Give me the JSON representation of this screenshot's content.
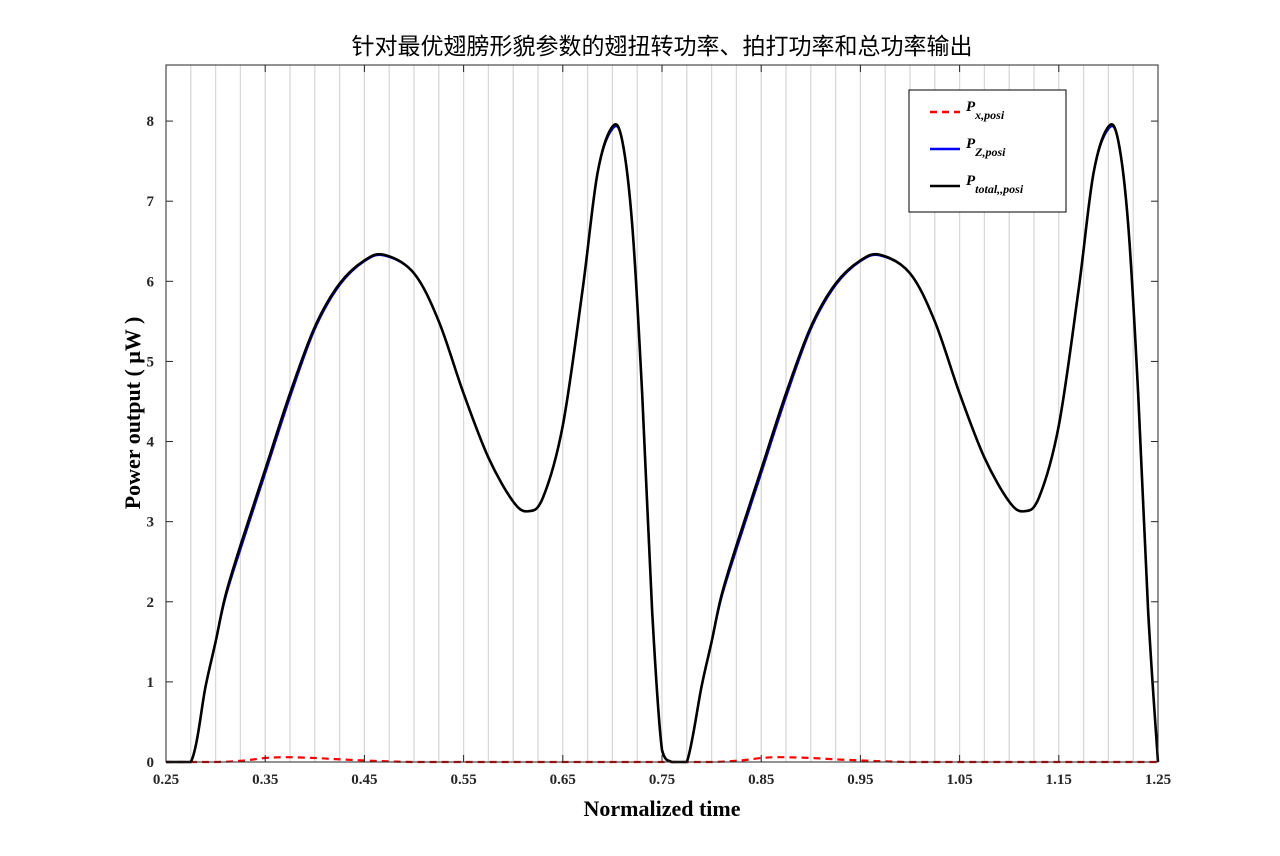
{
  "chart_data": {
    "type": "line",
    "title": "针对最优翅膀形貌参数的翅扭转功率、拍打功率和总功率输出",
    "xlabel": "Normalized time",
    "ylabel": "Power output ( μW )",
    "xlim": [
      0.25,
      1.25
    ],
    "ylim": [
      0,
      8.7
    ],
    "xticks": [
      "0.25",
      "0.35",
      "0.45",
      "0.55",
      "0.65",
      "0.75",
      "0.85",
      "0.95",
      "1.05",
      "1.15",
      "1.25"
    ],
    "yticks": [
      "0",
      "1",
      "2",
      "3",
      "4",
      "5",
      "6",
      "7",
      "8"
    ],
    "grid": "vertical",
    "legend": {
      "placement": "top-right",
      "entries": [
        {
          "label": "P",
          "sub": "x,posi",
          "color": "#ff0000",
          "style": "dashed"
        },
        {
          "label": "P",
          "sub": "Z,posi",
          "color": "#0000ff",
          "style": "solid"
        },
        {
          "label": "P",
          "sub": "total,,posi",
          "color": "#000000",
          "style": "solid"
        }
      ]
    },
    "series": [
      {
        "name": "Px,posi",
        "color": "#ff0000",
        "x": [
          0.25,
          0.3,
          0.33,
          0.35,
          0.37,
          0.4,
          0.43,
          0.47,
          0.5,
          0.55,
          0.6,
          0.65,
          0.7,
          0.75,
          0.8,
          0.83,
          0.85,
          0.87,
          0.9,
          0.93,
          0.97,
          1.0,
          1.05,
          1.1,
          1.15,
          1.2,
          1.25
        ],
        "y": [
          0,
          0,
          0.02,
          0.05,
          0.06,
          0.05,
          0.03,
          0.01,
          0,
          0,
          0,
          0,
          0,
          0,
          0,
          0.02,
          0.05,
          0.06,
          0.05,
          0.03,
          0.01,
          0,
          0,
          0,
          0,
          0,
          0
        ]
      },
      {
        "name": "PZ,posi",
        "color": "#0000ff",
        "x": [
          0.25,
          0.275,
          0.29,
          0.3,
          0.31,
          0.325,
          0.35,
          0.375,
          0.4,
          0.425,
          0.45,
          0.47,
          0.5,
          0.525,
          0.55,
          0.575,
          0.6,
          0.615,
          0.63,
          0.65,
          0.67,
          0.685,
          0.7,
          0.71,
          0.72,
          0.73,
          0.74,
          0.75,
          0.76,
          0.775,
          0.79,
          0.8,
          0.81,
          0.825,
          0.85,
          0.875,
          0.9,
          0.925,
          0.95,
          0.97,
          1.0,
          1.025,
          1.05,
          1.075,
          1.1,
          1.115,
          1.13,
          1.15,
          1.17,
          1.185,
          1.2,
          1.21,
          1.22,
          1.23,
          1.24,
          1.25
        ],
        "y": [
          0,
          0,
          0.95,
          1.5,
          2.05,
          2.65,
          3.6,
          4.55,
          5.4,
          5.95,
          6.25,
          6.32,
          6.1,
          5.5,
          4.6,
          3.8,
          3.25,
          3.13,
          3.3,
          4.2,
          5.9,
          7.35,
          7.9,
          7.75,
          6.7,
          4.6,
          1.9,
          0.15,
          0,
          0,
          0.95,
          1.5,
          2.05,
          2.65,
          3.6,
          4.55,
          5.4,
          5.95,
          6.25,
          6.32,
          6.1,
          5.5,
          4.6,
          3.8,
          3.25,
          3.13,
          3.3,
          4.2,
          5.9,
          7.35,
          7.9,
          7.75,
          6.7,
          4.6,
          1.9,
          0
        ]
      },
      {
        "name": "Ptotal,,posi",
        "color": "#000000",
        "x": [
          0.25,
          0.275,
          0.29,
          0.3,
          0.31,
          0.325,
          0.35,
          0.375,
          0.4,
          0.425,
          0.45,
          0.47,
          0.5,
          0.525,
          0.55,
          0.575,
          0.6,
          0.615,
          0.63,
          0.65,
          0.67,
          0.685,
          0.7,
          0.71,
          0.72,
          0.73,
          0.74,
          0.75,
          0.76,
          0.775,
          0.79,
          0.8,
          0.81,
          0.825,
          0.85,
          0.875,
          0.9,
          0.925,
          0.95,
          0.97,
          1.0,
          1.025,
          1.05,
          1.075,
          1.1,
          1.115,
          1.13,
          1.15,
          1.17,
          1.185,
          1.2,
          1.21,
          1.22,
          1.23,
          1.24,
          1.25
        ],
        "y": [
          0,
          0,
          0.95,
          1.5,
          2.08,
          2.7,
          3.65,
          4.6,
          5.43,
          5.97,
          6.26,
          6.33,
          6.1,
          5.5,
          4.6,
          3.8,
          3.25,
          3.13,
          3.3,
          4.2,
          5.9,
          7.35,
          7.93,
          7.75,
          6.7,
          4.6,
          1.9,
          0.15,
          0,
          0,
          0.95,
          1.5,
          2.08,
          2.7,
          3.65,
          4.6,
          5.43,
          5.97,
          6.26,
          6.33,
          6.1,
          5.5,
          4.6,
          3.8,
          3.25,
          3.13,
          3.3,
          4.2,
          5.9,
          7.35,
          7.93,
          7.75,
          6.7,
          4.6,
          1.9,
          0
        ]
      }
    ]
  }
}
